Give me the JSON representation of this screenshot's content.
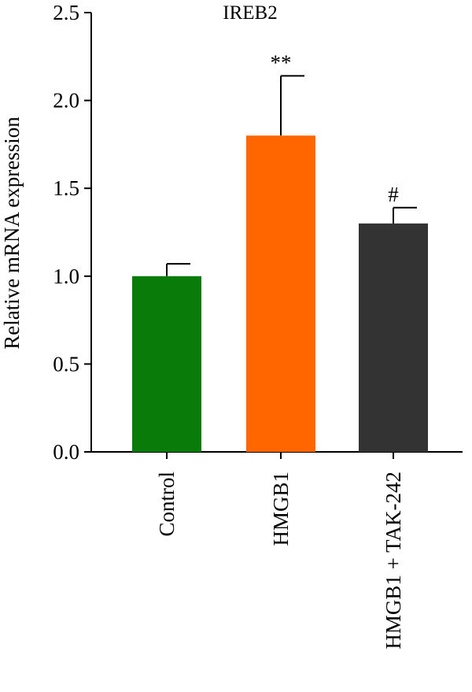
{
  "chart_data": {
    "type": "bar",
    "title": "IREB2",
    "xlabel": "",
    "ylabel": "Relative mRNA expression",
    "ylim": [
      0,
      2.5
    ],
    "yticks": [
      "0.0",
      "0.5",
      "1.0",
      "1.5",
      "2.0",
      "2.5"
    ],
    "categories": [
      "Control",
      "HMGB1",
      "HMGB1 + TAK-242"
    ],
    "values": [
      1.0,
      1.8,
      1.3
    ],
    "error": [
      0.07,
      0.34,
      0.09
    ],
    "significance": [
      "",
      "**",
      "#"
    ],
    "colors": [
      "#087b08",
      "#ff6600",
      "#333333"
    ],
    "grid": false,
    "legend": "none"
  }
}
